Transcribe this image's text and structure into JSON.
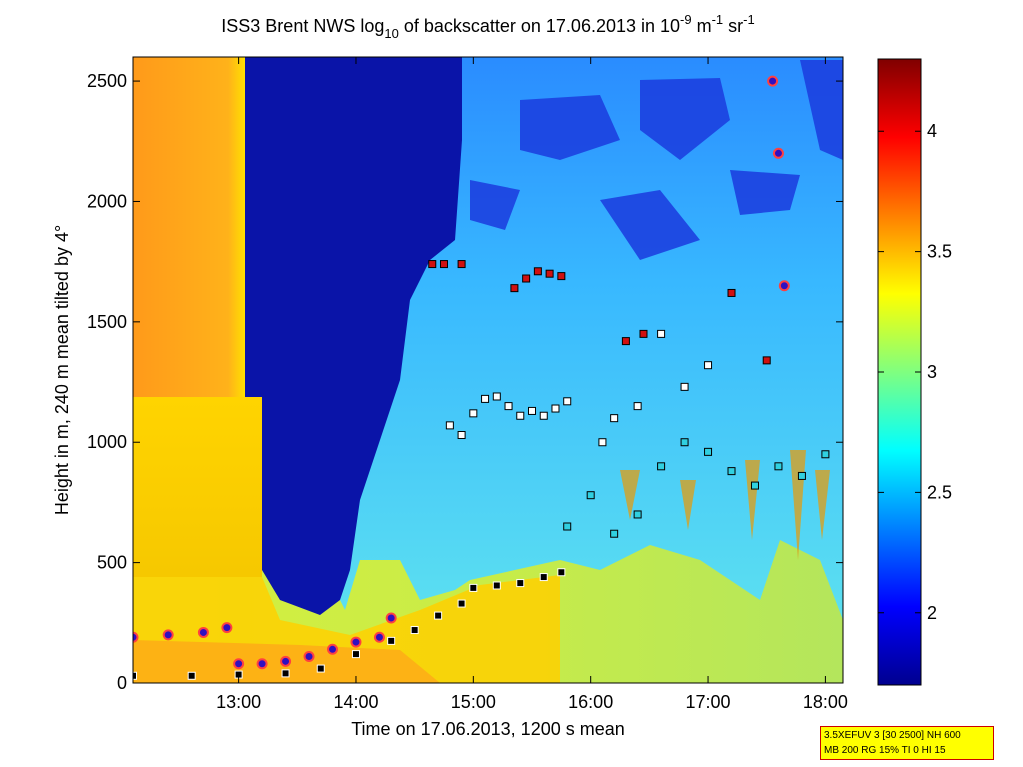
{
  "chart_data": {
    "type": "heatmap",
    "title_parts": {
      "prefix": "ISS3 Brent NWS log",
      "sub": "10",
      "middle": " of backscatter on 17.06.2013 in 10",
      "exp1": "-9",
      "unit_m": " m",
      "exp2": "-1",
      "unit_sr": " sr",
      "exp3": "-1"
    },
    "xlabel": "Time on 17.06.2013, 1200 s mean",
    "ylabel": "Height in m, 240 m mean tilted by 4°",
    "xlim": [
      12.1,
      18.15
    ],
    "ylim": [
      0,
      2600
    ],
    "xticks": [
      13,
      14,
      15,
      16,
      17,
      18
    ],
    "xtick_labels": [
      "13:00",
      "14:00",
      "15:00",
      "16:00",
      "17:00",
      "18:00"
    ],
    "yticks": [
      0,
      500,
      1000,
      1500,
      2000,
      2500
    ],
    "ytick_labels": [
      "0",
      "500",
      "1000",
      "1500",
      "2000",
      "2500"
    ],
    "colorbar": {
      "range": [
        1.7,
        4.3
      ],
      "ticks": [
        2,
        2.5,
        3,
        3.5,
        4
      ],
      "tick_labels": [
        "2",
        "2.5",
        "3",
        "3.5",
        "4"
      ]
    },
    "regions": [
      {
        "name": "orange-layer",
        "x": [
          12.1,
          12.92
        ],
        "y": [
          0,
          2600
        ],
        "value": 3.7
      },
      {
        "name": "yellow-left",
        "x": [
          12.1,
          13.0
        ],
        "y": [
          0,
          1250
        ],
        "value": 3.5
      },
      {
        "name": "clear-gap",
        "x": [
          12.92,
          14.0
        ],
        "y": [
          300,
          2600
        ],
        "value": 1.8
      },
      {
        "name": "cloud-column",
        "x": [
          14.6,
          18.1
        ],
        "y": [
          900,
          2600
        ],
        "value": 2.6
      }
    ],
    "series": [
      {
        "name": "black-squares",
        "x": [
          12.1,
          12.6,
          13.0,
          13.4,
          13.7,
          14.0,
          14.3,
          14.5,
          14.7,
          14.9,
          15.0,
          15.2,
          15.4,
          15.6,
          15.75
        ],
        "y": [
          30,
          30,
          35,
          40,
          60,
          120,
          175,
          220,
          280,
          330,
          395,
          405,
          415,
          440,
          460
        ]
      },
      {
        "name": "white-squares-upper",
        "x": [
          14.8,
          14.9,
          15.0,
          15.1,
          15.2,
          15.3,
          15.4,
          15.5,
          15.6,
          15.7,
          15.8,
          16.1,
          16.2,
          16.4,
          16.6,
          16.8,
          17.0
        ],
        "y": [
          1070,
          1030,
          1120,
          1180,
          1190,
          1150,
          1110,
          1130,
          1110,
          1140,
          1170,
          1000,
          1100,
          1150,
          1450,
          1230,
          1320
        ]
      },
      {
        "name": "red-squares",
        "x": [
          14.65,
          14.75,
          14.9,
          15.35,
          15.45,
          15.55,
          15.65,
          15.75,
          16.3,
          16.45,
          17.2,
          17.5
        ],
        "y": [
          1740,
          1740,
          1740,
          1640,
          1680,
          1710,
          1700,
          1690,
          1420,
          1450,
          1620,
          1340
        ]
      },
      {
        "name": "cyan-squares",
        "x": [
          15.8,
          16.0,
          16.2,
          16.4,
          16.6,
          16.8,
          17.0,
          17.2,
          17.4,
          17.6,
          17.8,
          18.0
        ],
        "y": [
          650,
          780,
          620,
          700,
          900,
          1000,
          960,
          880,
          820,
          900,
          860,
          950
        ]
      },
      {
        "name": "blue-dots",
        "x": [
          12.1,
          12.4,
          12.7,
          12.9,
          13.0,
          13.2,
          13.4,
          13.6,
          13.8,
          14.0,
          14.2,
          14.3,
          17.55,
          17.6,
          17.65
        ],
        "y": [
          190,
          200,
          210,
          230,
          80,
          80,
          90,
          110,
          140,
          170,
          190,
          270,
          2500,
          2200,
          1650
        ]
      }
    ]
  },
  "infobox": {
    "line1": "3.5XEFUV 3 [30 2500] NH 600",
    "line2": "MB 200 RG 15% TI 0 HI 15"
  }
}
